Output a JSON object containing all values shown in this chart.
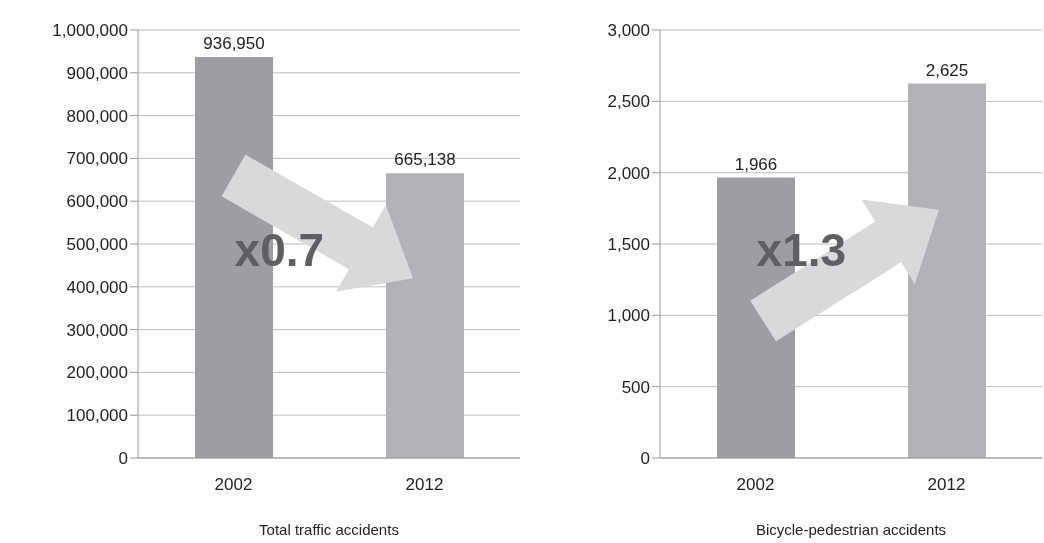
{
  "chart_data": [
    {
      "type": "bar",
      "categories": [
        "2002",
        "2012"
      ],
      "values": [
        936950,
        665138
      ],
      "value_labels": [
        "936,950",
        "665,138"
      ],
      "colors": [
        "#9d9ea2",
        "#b2b3b7"
      ],
      "ylim": [
        0,
        1000000
      ],
      "yticks": [
        {
          "value": 0,
          "label": "0"
        },
        {
          "value": 100000,
          "label": "100,000"
        },
        {
          "value": 200000,
          "label": "200,000"
        },
        {
          "value": 300000,
          "label": "300,000"
        },
        {
          "value": 400000,
          "label": "400,000"
        },
        {
          "value": 500000,
          "label": "500,000"
        },
        {
          "value": 600000,
          "label": "600,000"
        },
        {
          "value": 700000,
          "label": "700,000"
        },
        {
          "value": 800000,
          "label": "800,000"
        },
        {
          "value": 900000,
          "label": "900,000"
        },
        {
          "value": 1000000,
          "label": "1,000,000"
        }
      ],
      "grid": "y",
      "xlabel": "Total traffic accidents",
      "annotations": [
        "x0.7"
      ]
    },
    {
      "type": "bar",
      "categories": [
        "2002",
        "2012"
      ],
      "values": [
        1966,
        2625
      ],
      "value_labels": [
        "1,966",
        "2,625"
      ],
      "colors": [
        "#9d9ea2",
        "#b2b3b7"
      ],
      "ylim": [
        0,
        3000
      ],
      "yticks": [
        {
          "value": 0,
          "label": "0"
        },
        {
          "value": 500,
          "label": "500"
        },
        {
          "value": 1000,
          "label": "1,000"
        },
        {
          "value": 1500,
          "label": "1,500"
        },
        {
          "value": 2000,
          "label": "2,000"
        },
        {
          "value": 2500,
          "label": "2,500"
        },
        {
          "value": 3000,
          "label": "3,000"
        }
      ],
      "grid": "y",
      "xlabel": "Bicycle-pedestrian accidents",
      "annotations": [
        "x1.3"
      ]
    }
  ]
}
